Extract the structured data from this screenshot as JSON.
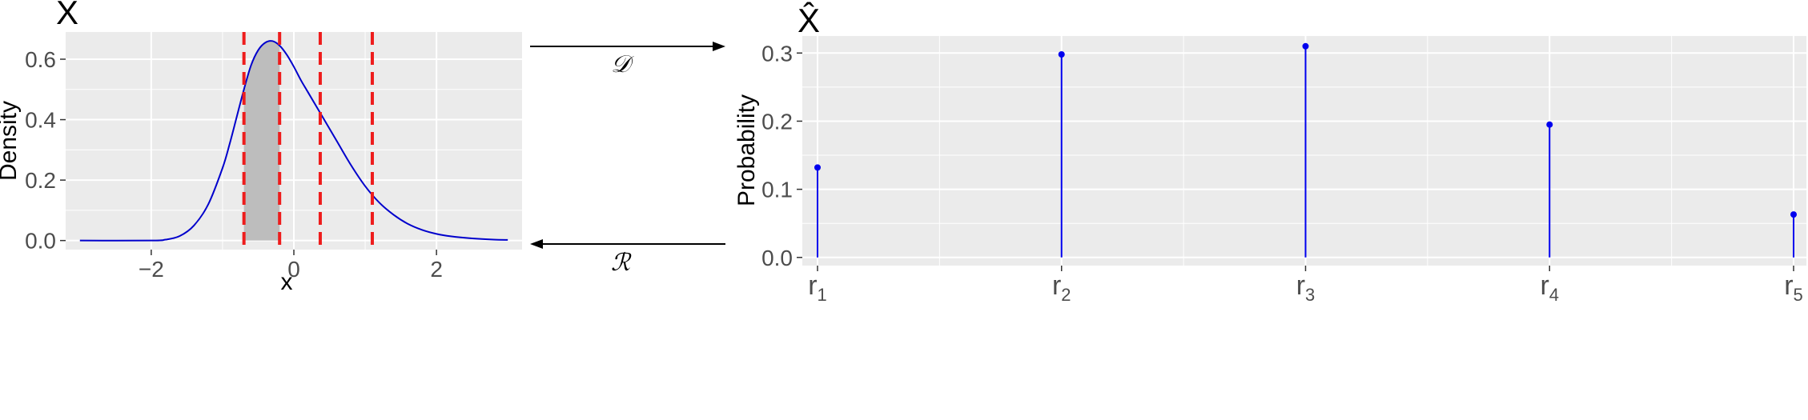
{
  "chart_data": [
    {
      "type": "area",
      "title": "X",
      "xlabel": "x",
      "ylabel": "Density",
      "xlim": [
        -3.2,
        3.2
      ],
      "ylim": [
        -0.03,
        0.69
      ],
      "xticks": [
        -2,
        0,
        2
      ],
      "xtick_labels": [
        "−2",
        "0",
        "2"
      ],
      "yticks": [
        0.0,
        0.2,
        0.4,
        0.6
      ],
      "ytick_labels": [
        "0.0",
        "0.2",
        "0.4",
        "0.6"
      ],
      "grid": true,
      "curve": {
        "x": [
          -3.0,
          -2.0,
          -1.8,
          -1.6,
          -1.4,
          -1.2,
          -1.0,
          -0.9,
          -0.8,
          -0.7,
          -0.6,
          -0.5,
          -0.4,
          -0.3,
          -0.2,
          -0.1,
          0.0,
          0.1,
          0.2,
          0.4,
          0.6,
          0.8,
          1.0,
          1.2,
          1.4,
          1.6,
          1.8,
          2.0,
          2.2,
          2.5,
          2.8,
          3.0
        ],
        "y": [
          0.0,
          0.0,
          0.003,
          0.015,
          0.05,
          0.12,
          0.24,
          0.32,
          0.41,
          0.5,
          0.58,
          0.63,
          0.655,
          0.66,
          0.645,
          0.615,
          0.575,
          0.53,
          0.49,
          0.41,
          0.33,
          0.25,
          0.18,
          0.125,
          0.085,
          0.055,
          0.035,
          0.022,
          0.014,
          0.007,
          0.003,
          0.002
        ],
        "color": "#0000cc"
      },
      "cutpoints": [
        -0.7,
        -0.2,
        0.37,
        1.1
      ],
      "cutpoint_color": "#ee1c1c",
      "shaded_interval": [
        -0.7,
        -0.2
      ],
      "shade_color": "#bdbdbd"
    },
    {
      "type": "bar",
      "title": "X̂",
      "xlabel": "",
      "ylabel": "Probability",
      "categories": [
        "r1",
        "r2",
        "r3",
        "r4",
        "r5"
      ],
      "category_main": [
        "r",
        "r",
        "r",
        "r",
        "r"
      ],
      "category_sub": [
        "1",
        "2",
        "3",
        "4",
        "5"
      ],
      "values": [
        0.132,
        0.298,
        0.31,
        0.195,
        0.063
      ],
      "ylim": [
        -0.012,
        0.325
      ],
      "yticks": [
        0.0,
        0.1,
        0.2,
        0.3
      ],
      "ytick_labels": [
        "0.0",
        "0.1",
        "0.2",
        "0.3"
      ],
      "grid": true,
      "color": "#0000ee"
    }
  ],
  "arrows": {
    "top_label": "𝒟",
    "bottom_label": "ℛ"
  },
  "colors": {
    "panel": "#ebebeb",
    "grid": "#ffffff"
  }
}
